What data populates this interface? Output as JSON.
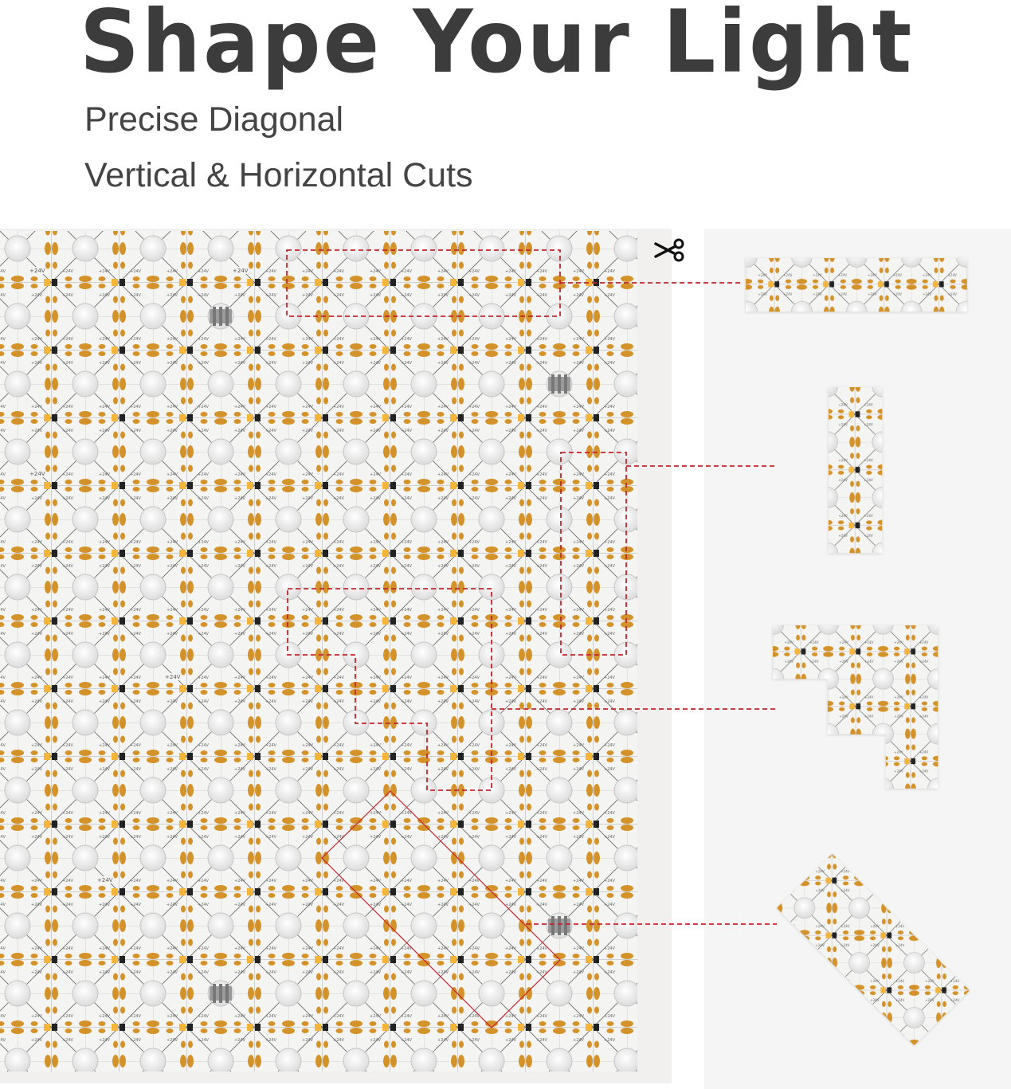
{
  "header": {
    "title": "Shape Your Light",
    "subtitle_lines": [
      "Precise Diagonal",
      "Vertical & Horizontal Cuts"
    ]
  },
  "icons": {
    "cut": "scissors-icon",
    "connector": "connector-clip-icon"
  },
  "board": {
    "pad_label": "+24V"
  },
  "colors": {
    "title": "#3c3c3c",
    "pad_gold": "#d4922a",
    "led_yellow": "#f5b43a",
    "cut_line_red": "#c4262c",
    "board_bg": "#f1f0ee",
    "panel_bg": "#f5f5f5"
  }
}
